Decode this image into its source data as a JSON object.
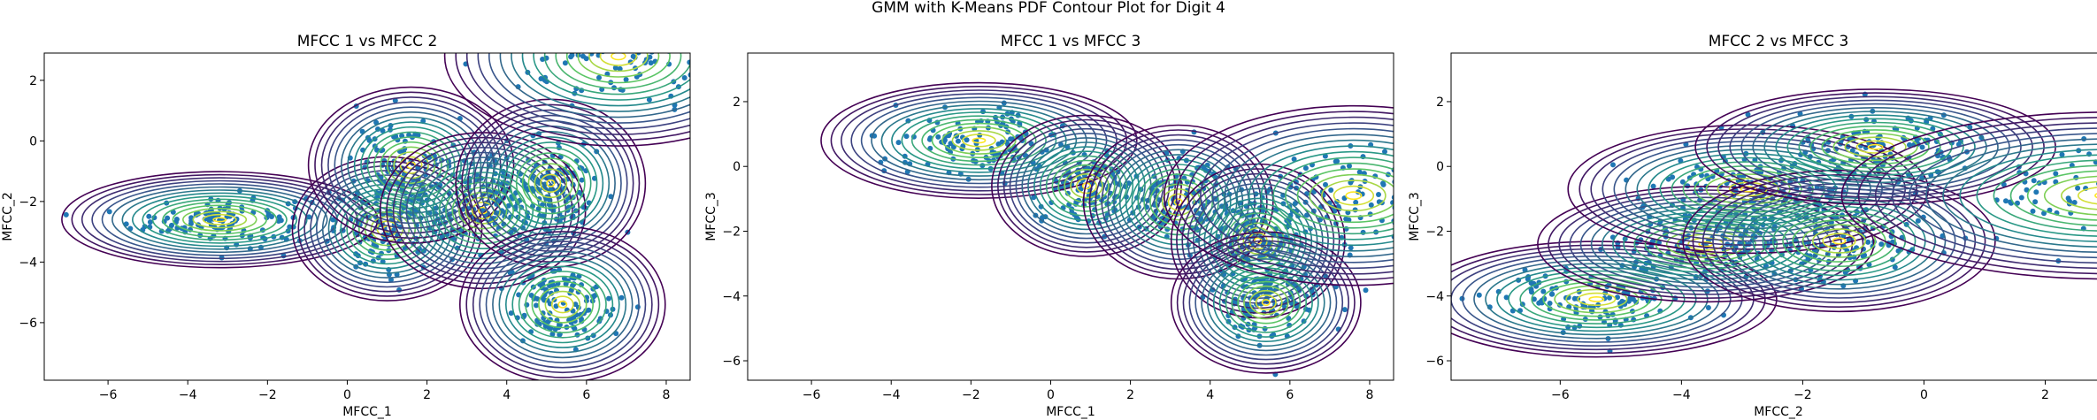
{
  "figure_title": "GMM with K-Means PDF Contour Plot for Digit 4",
  "colors": {
    "points": "#1f77b4",
    "contour_low": "#440154",
    "contour_mid": "#21918c",
    "contour_high": "#fde725",
    "axes": "#000000"
  },
  "chart_data": [
    {
      "type": "scatter",
      "title": "MFCC 1 vs MFCC 2",
      "xlabel": "MFCC_1",
      "ylabel": "MFCC_2",
      "xlim": [
        -7.6,
        8.6
      ],
      "ylim": [
        -7.9,
        2.9
      ],
      "xticks": [
        -6,
        -4,
        -2,
        0,
        2,
        4,
        6,
        8
      ],
      "yticks": [
        -6,
        -4,
        -2,
        0,
        2
      ],
      "overlay": "GMM PDF contour ellipses (viridis)",
      "components": [
        {
          "cx": -3.2,
          "cy": -2.6,
          "sx": 2.0,
          "sy": 0.8
        },
        {
          "cx": 1.0,
          "cy": -2.9,
          "sx": 1.2,
          "sy": 1.2
        },
        {
          "cx": 1.6,
          "cy": -0.8,
          "sx": 1.3,
          "sy": 1.3
        },
        {
          "cx": 3.4,
          "cy": -2.3,
          "sx": 1.3,
          "sy": 1.3
        },
        {
          "cx": 5.1,
          "cy": -1.4,
          "sx": 1.2,
          "sy": 1.4
        },
        {
          "cx": 5.4,
          "cy": -5.4,
          "sx": 1.3,
          "sy": 1.3
        },
        {
          "cx": 6.8,
          "cy": 2.8,
          "sx": 2.2,
          "sy": 1.5
        }
      ]
    },
    {
      "type": "scatter",
      "title": "MFCC 1 vs MFCC 3",
      "xlabel": "MFCC_1",
      "ylabel": "MFCC_3",
      "xlim": [
        -7.6,
        8.6
      ],
      "ylim": [
        -6.6,
        3.5
      ],
      "xticks": [
        -6,
        -4,
        -2,
        0,
        2,
        4,
        6,
        8
      ],
      "yticks": [
        -6,
        -4,
        -2,
        0,
        2
      ],
      "overlay": "GMM PDF contour ellipses (viridis)",
      "components": [
        {
          "cx": -1.8,
          "cy": 0.8,
          "sx": 2.0,
          "sy": 0.9
        },
        {
          "cx": 0.9,
          "cy": -0.6,
          "sx": 1.2,
          "sy": 1.1
        },
        {
          "cx": 3.2,
          "cy": -1.1,
          "sx": 1.2,
          "sy": 1.2
        },
        {
          "cx": 5.2,
          "cy": -2.3,
          "sx": 1.1,
          "sy": 1.2
        },
        {
          "cx": 5.4,
          "cy": -4.2,
          "sx": 1.2,
          "sy": 1.1
        },
        {
          "cx": 7.6,
          "cy": -0.9,
          "sx": 2.4,
          "sy": 1.4
        }
      ]
    },
    {
      "type": "scatter",
      "title": "MFCC 2 vs MFCC 3",
      "xlabel": "MFCC_2",
      "ylabel": "MFCC_3",
      "xlim": [
        -7.8,
        3.0
      ],
      "ylim": [
        -6.6,
        3.5
      ],
      "xticks": [
        -6,
        -4,
        -2,
        0,
        2
      ],
      "yticks": [
        -6,
        -4,
        -2,
        0,
        2
      ],
      "overlay": "GMM PDF contour ellipses (viridis)",
      "components": [
        {
          "cx": -5.4,
          "cy": -4.1,
          "sx": 1.5,
          "sy": 0.9
        },
        {
          "cx": -3.6,
          "cy": -2.4,
          "sx": 1.4,
          "sy": 0.9
        },
        {
          "cx": -2.9,
          "cy": -0.7,
          "sx": 1.5,
          "sy": 1.0
        },
        {
          "cx": -1.4,
          "cy": -2.3,
          "sx": 1.3,
          "sy": 1.1
        },
        {
          "cx": -0.8,
          "cy": 0.6,
          "sx": 1.5,
          "sy": 0.9
        },
        {
          "cx": 3.0,
          "cy": -0.9,
          "sx": 2.2,
          "sy": 1.3
        }
      ]
    }
  ]
}
